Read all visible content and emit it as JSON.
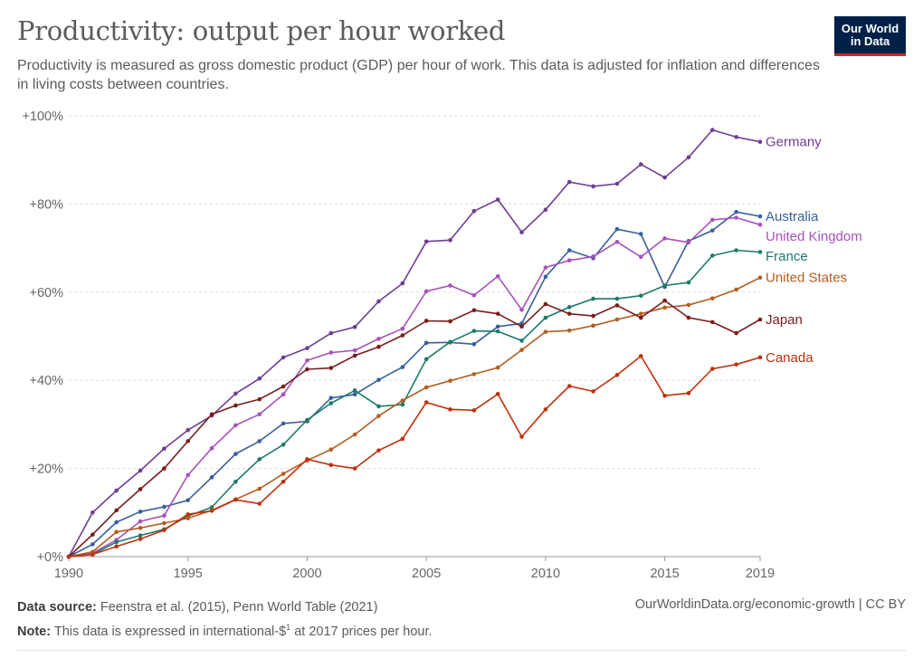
{
  "header": {
    "title": "Productivity: output per hour worked",
    "subtitle": "Productivity is measured as gross domestic product (GDP) per hour of work. This data is adjusted for inflation and differences in living costs between countries.",
    "logo_line1": "Our World",
    "logo_line2": "in Data"
  },
  "footer": {
    "source_label": "Data source:",
    "source_text": "Feenstra et al. (2015), Penn World Table (2021)",
    "note_label": "Note:",
    "note_text_before": "This data is expressed in international-$",
    "note_sup": "1",
    "note_text_after": " at 2017 prices per hour.",
    "right_text": "OurWorldinData.org/economic-growth | CC BY"
  },
  "colors": {
    "Germany": "#6d3e91",
    "Australia": "#38609a",
    "United Kingdom": "#a652ba",
    "France": "#1c7a6b",
    "United States": "#b25d1f",
    "Japan": "#7a1d1d",
    "Canada": "#c0310d"
  },
  "chart_data": {
    "type": "line",
    "x": [
      1990,
      1991,
      1992,
      1993,
      1994,
      1995,
      1996,
      1997,
      1998,
      1999,
      2000,
      2001,
      2002,
      2003,
      2004,
      2005,
      2006,
      2007,
      2008,
      2009,
      2010,
      2011,
      2012,
      2013,
      2014,
      2015,
      2016,
      2017,
      2018,
      2019
    ],
    "xticks": [
      "1990",
      "1995",
      "2000",
      "2005",
      "2010",
      "2015",
      "2019"
    ],
    "yticks": [
      "+0%",
      "+20%",
      "+40%",
      "+60%",
      "+80%",
      "+100%"
    ],
    "ylim": [
      0,
      100
    ],
    "xlim": [
      1990,
      2019
    ],
    "grid": "horizontal",
    "legend": "right-inline",
    "series": [
      {
        "name": "Germany",
        "values": [
          0,
          10,
          15,
          19.5,
          24.5,
          28.7,
          32,
          37,
          40.4,
          45.2,
          47.3,
          50.7,
          52.1,
          57.9,
          62,
          71.5,
          71.8,
          78.4,
          81,
          73.6,
          78.7,
          85,
          84,
          84.6,
          89,
          86,
          90.6,
          96.8,
          95.2,
          94.1
        ]
      },
      {
        "name": "Australia",
        "values": [
          0,
          2.8,
          7.8,
          10.2,
          11.3,
          12.8,
          18,
          23.3,
          26.2,
          30.2,
          30.7,
          36,
          36.8,
          40.1,
          43,
          48.5,
          48.6,
          48.2,
          52.2,
          52.9,
          63.5,
          69.5,
          67.7,
          74.3,
          73.2,
          61.2,
          71.6,
          74,
          78.2,
          77.2
        ]
      },
      {
        "name": "United Kingdom",
        "values": [
          0,
          0.8,
          3.8,
          8,
          9.3,
          18.5,
          24.6,
          29.8,
          32.3,
          36.8,
          44.5,
          46.3,
          46.8,
          49.4,
          51.7,
          60.2,
          61.5,
          59.3,
          63.6,
          56,
          65.6,
          67.2,
          68.1,
          71.4,
          68,
          72.2,
          71.3,
          76.4,
          76.9,
          75.3
        ]
      },
      {
        "name": "France",
        "values": [
          0,
          0.5,
          3.3,
          4.8,
          6.2,
          9.2,
          11.2,
          17,
          22.1,
          25.4,
          31,
          34.8,
          37.7,
          34.1,
          34.5,
          44.8,
          48.7,
          51.2,
          51.1,
          49,
          54.2,
          56.6,
          58.5,
          58.5,
          59.2,
          61.5,
          62.2,
          68.3,
          69.5,
          69.1
        ]
      },
      {
        "name": "United States",
        "values": [
          0,
          1.1,
          5.6,
          6.5,
          7.6,
          8.7,
          10.5,
          13,
          15.4,
          18.8,
          21.8,
          24.3,
          27.7,
          31.9,
          35.4,
          38.4,
          39.9,
          41.4,
          42.9,
          46.9,
          51,
          51.3,
          52.4,
          53.8,
          55.1,
          56.5,
          57.1,
          58.6,
          60.6,
          63.3
        ]
      },
      {
        "name": "Japan",
        "values": [
          0,
          5,
          10.5,
          15.3,
          20,
          26.2,
          32.3,
          34.3,
          35.7,
          38.6,
          42.5,
          42.8,
          45.6,
          47.6,
          50.2,
          53.5,
          53.4,
          55.9,
          55.1,
          52.2,
          57.3,
          55.1,
          54.6,
          57,
          54.2,
          58.1,
          54.2,
          53.2,
          50.7,
          53.8
        ]
      },
      {
        "name": "Canada",
        "values": [
          0,
          0.5,
          2.3,
          4,
          6,
          9.6,
          10.4,
          12.9,
          12,
          17,
          22.1,
          20.8,
          20,
          24.1,
          26.7,
          35,
          33.4,
          33.2,
          36.9,
          27.2,
          33.4,
          38.7,
          37.5,
          41.2,
          45.5,
          36.5,
          37.1,
          42.6,
          43.6,
          45.2
        ]
      }
    ]
  }
}
